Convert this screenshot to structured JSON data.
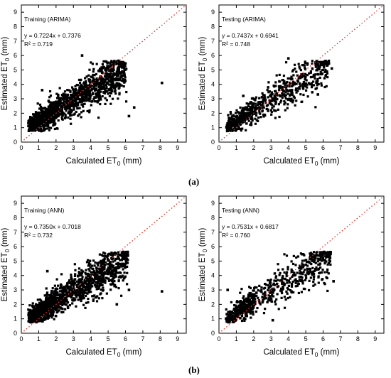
{
  "figure_labels": [
    "(a)",
    "(b)"
  ],
  "chart_data": [
    {
      "type": "scatter",
      "title": "Training (ARIMA)",
      "equation": "y = 0.7224x + 0.7376",
      "r2": "R² = 0.719",
      "xlabel": "Calculated ET",
      "ylabel": "Estimated ET",
      "subscript": "0",
      "unit": " (mm)",
      "xlim": [
        0,
        9.5
      ],
      "ylim": [
        0,
        9.5
      ],
      "xticks": [
        0,
        1,
        2,
        3,
        4,
        5,
        6,
        7,
        8,
        9
      ],
      "yticks": [
        0,
        1,
        2,
        3,
        4,
        5,
        6,
        7,
        8,
        9
      ],
      "grid": false,
      "reference_line": "1:1",
      "regression": {
        "slope": 0.7224,
        "intercept": 0.7376
      },
      "fit_r2": 0.719,
      "outliers": [
        [
          8.1,
          4.1
        ],
        [
          3.5,
          6.0
        ],
        [
          6.5,
          2.4
        ],
        [
          6.2,
          1.8
        ],
        [
          1.2,
          3.6
        ]
      ],
      "x_range": [
        0.35,
        6.2
      ]
    },
    {
      "type": "scatter",
      "title": "Testing (ARIMA)",
      "equation": "y = 0.7437x + 0.6941",
      "r2": "R² = 0.748",
      "xlabel": "Calculated ET",
      "ylabel": "Estimated ET",
      "subscript": "0",
      "unit": " (mm)",
      "xlim": [
        0,
        9.5
      ],
      "ylim": [
        0,
        9.5
      ],
      "xticks": [
        0,
        1,
        2,
        3,
        4,
        5,
        6,
        7,
        8,
        9
      ],
      "yticks": [
        0,
        1,
        2,
        3,
        4,
        5,
        6,
        7,
        8,
        9
      ],
      "grid": false,
      "reference_line": "1:1",
      "regression": {
        "slope": 0.7437,
        "intercept": 0.6941
      },
      "fit_r2": 0.748,
      "outliers": [
        [
          6.5,
          5.1
        ],
        [
          5.7,
          3.3
        ],
        [
          4.0,
          5.8
        ],
        [
          1.4,
          3.2
        ]
      ],
      "x_range": [
        0.4,
        6.5
      ]
    },
    {
      "type": "scatter",
      "title": "Training (ANN)",
      "equation": "y = 0.7350x + 0.7018",
      "r2": "R² = 0.732",
      "xlabel": "Calculated ET",
      "ylabel": "Estimated ET",
      "subscript": "0",
      "unit": " (mm)",
      "xlim": [
        0,
        9.5
      ],
      "ylim": [
        0,
        9.5
      ],
      "xticks": [
        0,
        1,
        2,
        3,
        4,
        5,
        6,
        7,
        8,
        9
      ],
      "yticks": [
        0,
        1,
        2,
        3,
        4,
        5,
        6,
        7,
        8,
        9
      ],
      "grid": false,
      "reference_line": "1:1",
      "regression": {
        "slope": 0.735,
        "intercept": 0.7018
      },
      "fit_r2": 0.732,
      "outliers": [
        [
          8.1,
          2.9
        ],
        [
          6.2,
          3.0
        ],
        [
          5.5,
          2.0
        ],
        [
          1.5,
          4.3
        ]
      ],
      "x_range": [
        0.35,
        6.3
      ]
    },
    {
      "type": "scatter",
      "title": "Testing (ANN)",
      "equation": "y = 0.7531x + 0.6817",
      "r2": "R² = 0.760",
      "xlabel": "Calculated ET",
      "ylabel": "Estimated ET",
      "subscript": "0",
      "unit": " (mm)",
      "xlim": [
        0,
        9.5
      ],
      "ylim": [
        0,
        9.5
      ],
      "xticks": [
        0,
        1,
        2,
        3,
        4,
        5,
        6,
        7,
        8,
        9
      ],
      "yticks": [
        0,
        1,
        2,
        3,
        4,
        5,
        6,
        7,
        8,
        9
      ],
      "grid": false,
      "reference_line": "1:1",
      "regression": {
        "slope": 0.7531,
        "intercept": 0.6817
      },
      "fit_r2": 0.76,
      "outliers": [
        [
          0.5,
          3.0
        ],
        [
          6.6,
          3.6
        ],
        [
          6.4,
          5.2
        ],
        [
          3.1,
          0.9
        ]
      ],
      "x_range": [
        0.4,
        6.6
      ]
    }
  ]
}
